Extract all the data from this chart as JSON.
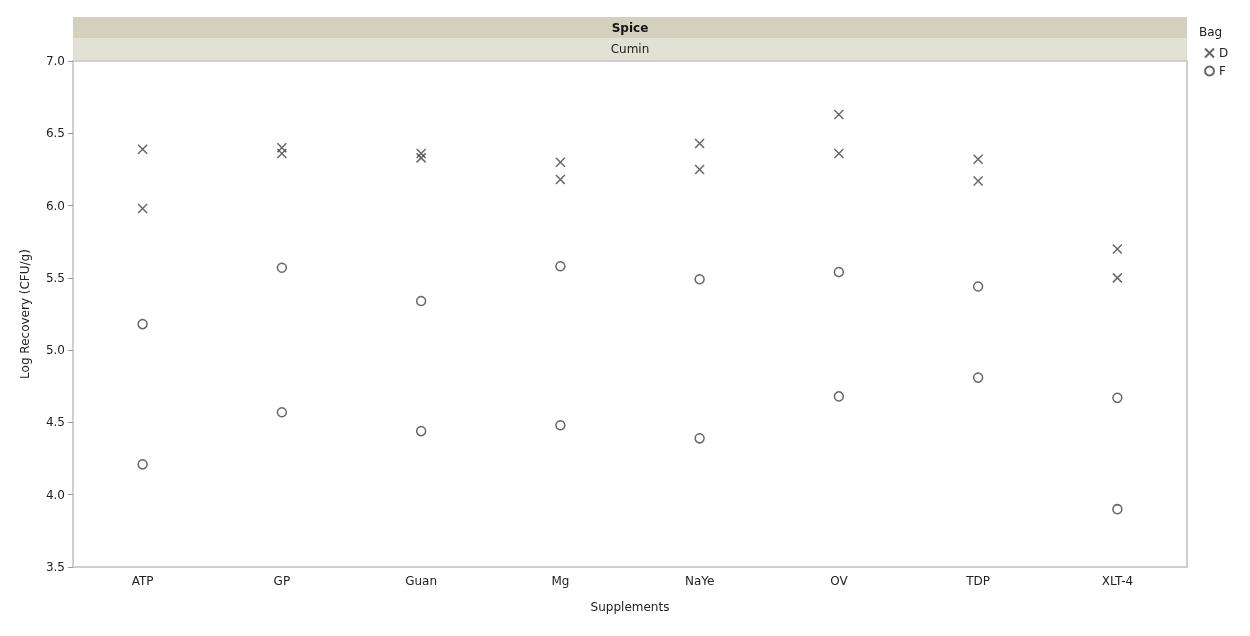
{
  "chart_data": {
    "type": "scatter",
    "title": "Spice",
    "subtitle": "Cumin",
    "xlabel": "Supplements",
    "ylabel": "Log Recovery (CFU/g)",
    "legend_title": "Bag",
    "legend": "top right",
    "categories": [
      "ATP",
      "GP",
      "Guan",
      "Mg",
      "NaYe",
      "OV",
      "TDP",
      "XLT-4"
    ],
    "ylim": [
      3.5,
      7.0
    ],
    "yticks": [
      {
        "value": 3.5,
        "label": "3.5"
      },
      {
        "value": 4,
        "label": "4.0"
      },
      {
        "value": 4.5,
        "label": "4.5"
      },
      {
        "value": 5,
        "label": "5.0"
      },
      {
        "value": 5.5,
        "label": "5.5"
      },
      {
        "value": 6,
        "label": "6.0"
      },
      {
        "value": 6.5,
        "label": "6.5"
      },
      {
        "value": 7,
        "label": "7.0"
      }
    ],
    "grid": false,
    "series": [
      {
        "name": "D",
        "color": "#404040",
        "marker": "cross",
        "x": [
          "ATP",
          "ATP",
          "GP",
          "GP",
          "Guan",
          "Guan",
          "Mg",
          "Mg",
          "NaYe",
          "NaYe",
          "OV",
          "OV",
          "TDP",
          "TDP",
          "XLT-4",
          "XLT-4"
        ],
        "values": [
          6.39,
          5.98,
          6.4,
          6.36,
          6.36,
          6.33,
          6.3,
          6.18,
          6.43,
          6.25,
          6.63,
          6.36,
          6.17,
          6.32,
          5.7,
          5.5
        ]
      },
      {
        "name": "F",
        "color": "#404040",
        "marker": "circle",
        "x": [
          "ATP",
          "ATP",
          "GP",
          "GP",
          "Guan",
          "Guan",
          "Mg",
          "Mg",
          "NaYe",
          "NaYe",
          "OV",
          "OV",
          "TDP",
          "TDP",
          "XLT-4",
          "XLT-4"
        ],
        "values": [
          5.18,
          4.21,
          5.57,
          4.57,
          5.34,
          4.44,
          5.58,
          4.48,
          5.49,
          4.39,
          5.54,
          4.68,
          5.44,
          4.81,
          4.67,
          3.9
        ]
      }
    ]
  }
}
